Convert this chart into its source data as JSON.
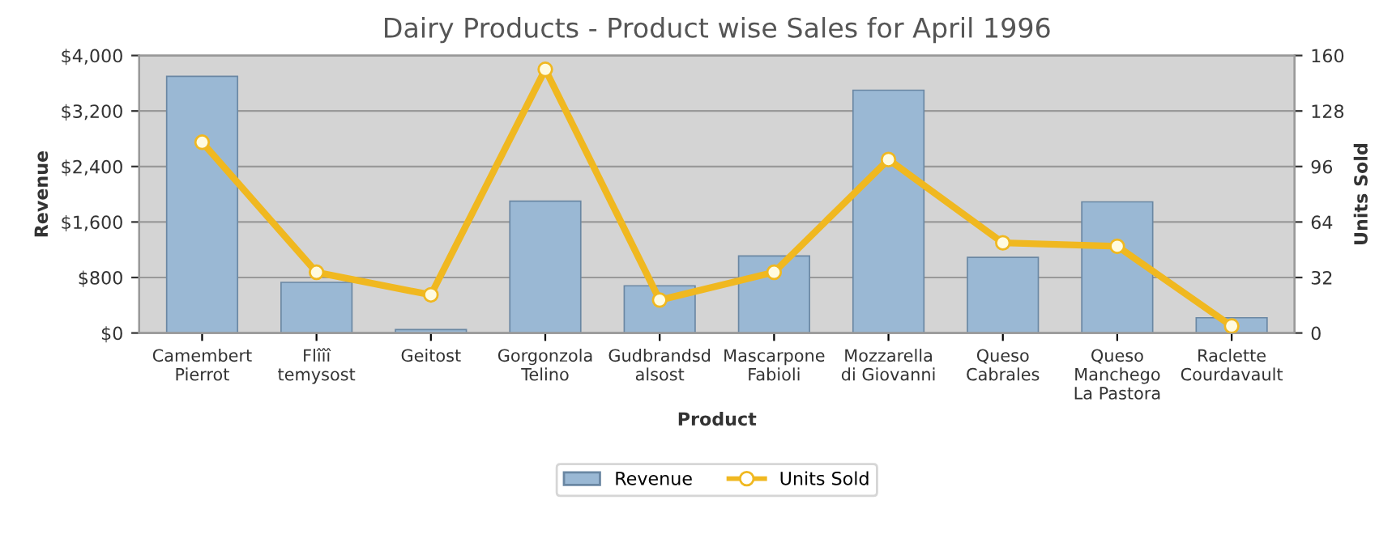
{
  "chart_data": {
    "type": "bar",
    "title": "Dairy Products - Product wise Sales for April 1996",
    "xlabel": "Product",
    "ylabel": "Revenue",
    "y2label": "Units Sold",
    "categories": [
      "Camembert\nPierrot",
      "Flîîî\ntemysost",
      "Geitost",
      "Gorgonzola\nTelino",
      "Gudbrandsd\nalsost",
      "Mascarpone\nFabioli",
      "Mozzarella\ndi Giovanni",
      "Queso\nCabrales",
      "Queso\nManchego\nLa Pastora",
      "Raclette\nCourdavault"
    ],
    "series": [
      {
        "name": "Revenue",
        "color": "#9ab8d4",
        "values": [
          3700,
          730,
          50,
          1900,
          680,
          1110,
          3500,
          1090,
          1890,
          220
        ]
      },
      {
        "name": "Units Sold",
        "type": "line",
        "axis": "y2",
        "color": "#f0b820",
        "marker": "circle",
        "values": [
          110,
          35,
          22,
          152,
          19,
          35,
          100,
          52,
          50,
          4
        ]
      }
    ],
    "ylim": [
      0,
      4000
    ],
    "yticks": [
      {
        "value": 0,
        "label": "$0"
      },
      {
        "value": 800,
        "label": "$800"
      },
      {
        "value": 1600,
        "label": "$1,600"
      },
      {
        "value": 2400,
        "label": "$2,400"
      },
      {
        "value": 3200,
        "label": "$3,200"
      },
      {
        "value": 4000,
        "label": "$4,000"
      }
    ],
    "y2lim": [
      0,
      160
    ],
    "y2ticks": [
      0,
      32,
      64,
      96,
      128,
      160
    ],
    "grid": "y",
    "legend": "bottom"
  }
}
